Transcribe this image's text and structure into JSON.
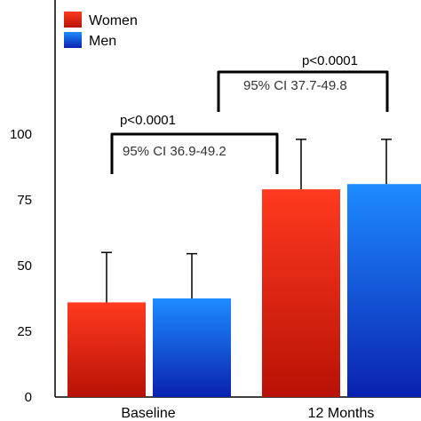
{
  "chart_data": {
    "type": "bar",
    "categories": [
      "Baseline",
      "12 Months"
    ],
    "series": [
      {
        "name": "Women",
        "values": [
          36,
          79
        ],
        "error_upper": [
          55,
          98
        ],
        "color_top": "#ff3a1f",
        "color_bottom": "#b81206"
      },
      {
        "name": "Men",
        "values": [
          37.5,
          81
        ],
        "error_upper": [
          54.5,
          98
        ],
        "color_top": "#1e8cff",
        "color_bottom": "#0a22b0"
      }
    ],
    "ylim": [
      0,
      100
    ],
    "y_ticks": [
      "0",
      "25",
      "50",
      "75",
      "100"
    ],
    "y_tick_values": [
      0,
      25,
      50,
      75,
      100
    ],
    "legend_position": "top-left",
    "grid": false,
    "annotations": [
      {
        "p_text": "p<0.0001",
        "ci_text": "95% CI 36.9-49.2"
      },
      {
        "p_text": "p<0.0001",
        "ci_text": "95% CI 37.7-49.8"
      }
    ]
  }
}
